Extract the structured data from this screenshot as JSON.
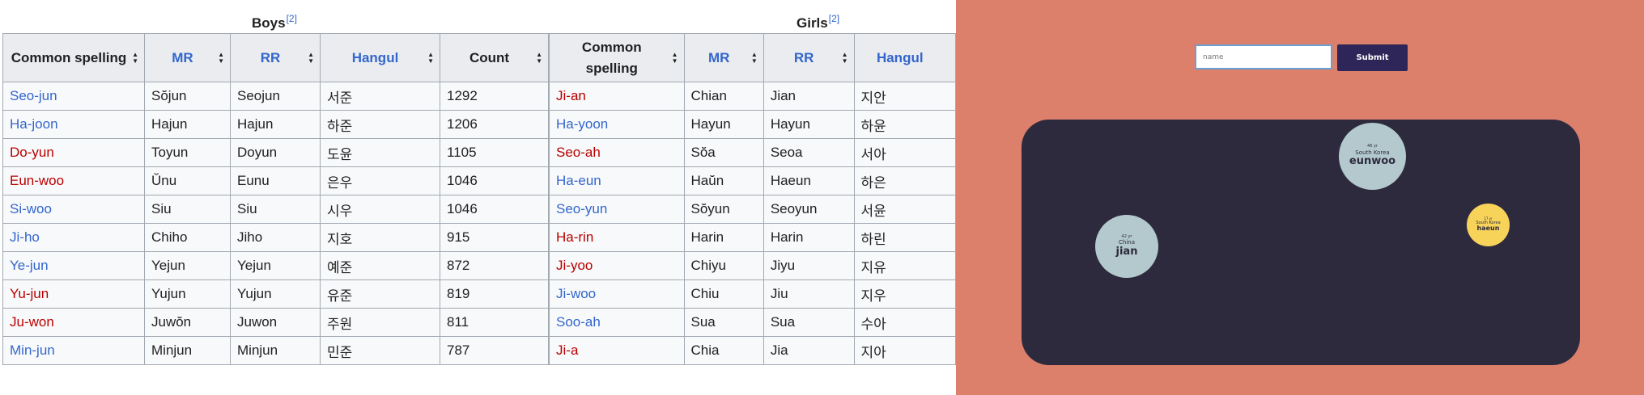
{
  "boys": {
    "caption": "Boys",
    "ref": "[2]",
    "headers": [
      "Common spelling",
      "MR",
      "RR",
      "Hangul",
      "Count"
    ],
    "rows": [
      {
        "spelling": "Seo-jun",
        "color": "#3366cc",
        "mr": "Sŏjun",
        "rr": "Seojun",
        "hangul": "서준",
        "count": "1292"
      },
      {
        "spelling": "Ha-joon",
        "color": "#3366cc",
        "mr": "Hajun",
        "rr": "Hajun",
        "hangul": "하준",
        "count": "1206"
      },
      {
        "spelling": "Do-yun",
        "color": "#ba0000",
        "mr": "Toyun",
        "rr": "Doyun",
        "hangul": "도윤",
        "count": "1105"
      },
      {
        "spelling": "Eun-woo",
        "color": "#ba0000",
        "mr": "Ŭnu",
        "rr": "Eunu",
        "hangul": "은우",
        "count": "1046"
      },
      {
        "spelling": "Si-woo",
        "color": "#3366cc",
        "mr": "Siu",
        "rr": "Siu",
        "hangul": "시우",
        "count": "1046"
      },
      {
        "spelling": "Ji-ho",
        "color": "#3366cc",
        "mr": "Chiho",
        "rr": "Jiho",
        "hangul": "지호",
        "count": "915"
      },
      {
        "spelling": "Ye-jun",
        "color": "#3366cc",
        "mr": "Yejun",
        "rr": "Yejun",
        "hangul": "예준",
        "count": "872"
      },
      {
        "spelling": "Yu-jun",
        "color": "#ba0000",
        "mr": "Yujun",
        "rr": "Yujun",
        "hangul": "유준",
        "count": "819"
      },
      {
        "spelling": "Ju-won",
        "color": "#ba0000",
        "mr": "Juwŏn",
        "rr": "Juwon",
        "hangul": "주원",
        "count": "811"
      },
      {
        "spelling": "Min-jun",
        "color": "#3366cc",
        "mr": "Minjun",
        "rr": "Minjun",
        "hangul": "민준",
        "count": "787"
      }
    ]
  },
  "girls": {
    "caption": "Girls",
    "ref": "[2]",
    "headers": [
      "Common spelling",
      "MR",
      "RR",
      "Hangul"
    ],
    "rows": [
      {
        "spelling": "Ji-an",
        "color": "#ba0000",
        "mr": "Chian",
        "rr": "Jian",
        "hangul": "지안"
      },
      {
        "spelling": "Ha-yoon",
        "color": "#3366cc",
        "mr": "Hayun",
        "rr": "Hayun",
        "hangul": "하윤"
      },
      {
        "spelling": "Seo-ah",
        "color": "#ba0000",
        "mr": "Sŏa",
        "rr": "Seoa",
        "hangul": "서아"
      },
      {
        "spelling": "Ha-eun",
        "color": "#3366cc",
        "mr": "Haŭn",
        "rr": "Haeun",
        "hangul": "하은"
      },
      {
        "spelling": "Seo-yun",
        "color": "#3366cc",
        "mr": "Sŏyun",
        "rr": "Seoyun",
        "hangul": "서윤"
      },
      {
        "spelling": "Ha-rin",
        "color": "#ba0000",
        "mr": "Harin",
        "rr": "Harin",
        "hangul": "하린"
      },
      {
        "spelling": "Ji-yoo",
        "color": "#ba0000",
        "mr": "Chiyu",
        "rr": "Jiyu",
        "hangul": "지유"
      },
      {
        "spelling": "Ji-woo",
        "color": "#3366cc",
        "mr": "Chiu",
        "rr": "Jiu",
        "hangul": "지우"
      },
      {
        "spelling": "Soo-ah",
        "color": "#3366cc",
        "mr": "Sua",
        "rr": "Sua",
        "hangul": "수아"
      },
      {
        "spelling": "Ji-a",
        "color": "#ba0000",
        "mr": "Chia",
        "rr": "Jia",
        "hangul": "지아"
      }
    ]
  },
  "form": {
    "placeholder": "name",
    "submit_label": "Submit"
  },
  "bubbles": [
    {
      "age": "46 yr",
      "country": "South Korea",
      "name": "eunwoo",
      "color": "#b3c9cd"
    },
    {
      "age": "42 yr",
      "country": "China",
      "name": "jian",
      "color": "#b3c9cd"
    },
    {
      "age": "17 yr",
      "country": "South Korea",
      "name": "haeun",
      "color": "#f7d35a"
    }
  ],
  "colors": {
    "app_background": "#dc806c",
    "stage_background": "#2e2a3e",
    "button": "#2e2658",
    "link_blue": "#3366cc",
    "link_red": "#ba0000"
  }
}
